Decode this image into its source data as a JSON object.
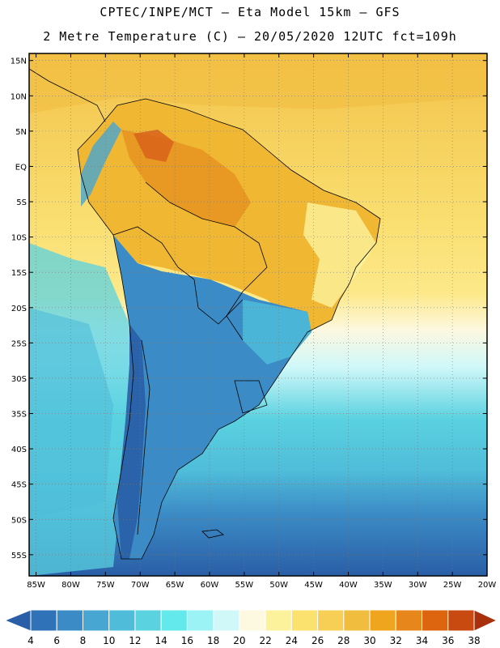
{
  "header": {
    "line1": "CPTEC/INPE/MCT  –   Eta Model 15km  –  GFS",
    "line2": "2 Metre Temperature (C) – 20/05/2020 12UTC fct=109h"
  },
  "map": {
    "lat_labels": [
      "15N",
      "10N",
      "5N",
      "EQ",
      "5S",
      "10S",
      "15S",
      "20S",
      "25S",
      "30S",
      "35S",
      "40S",
      "45S",
      "50S",
      "55S"
    ],
    "lon_labels": [
      "85W",
      "80W",
      "75W",
      "70W",
      "65W",
      "60W",
      "55W",
      "50W",
      "45W",
      "40W",
      "35W",
      "30W",
      "25W",
      "20W"
    ],
    "extent": {
      "lon": [
        -86,
        -20
      ],
      "lat": [
        -58,
        16
      ]
    }
  },
  "colorbar": {
    "levels": [
      "4",
      "6",
      "8",
      "10",
      "12",
      "14",
      "16",
      "18",
      "20",
      "22",
      "24",
      "26",
      "28",
      "30",
      "32",
      "34",
      "36",
      "38"
    ],
    "colors": [
      "#2a5ea6",
      "#2f72b8",
      "#3b8cc6",
      "#47a6d2",
      "#4fbcd9",
      "#5ad2e0",
      "#63e8ec",
      "#9cf3f6",
      "#d0f8f9",
      "#fdf8e0",
      "#fdf29c",
      "#fbe26e",
      "#f7cf55",
      "#f1bd3f",
      "#efa51e",
      "#e7861b",
      "#de6510",
      "#c84a10",
      "#a9300c"
    ]
  }
}
